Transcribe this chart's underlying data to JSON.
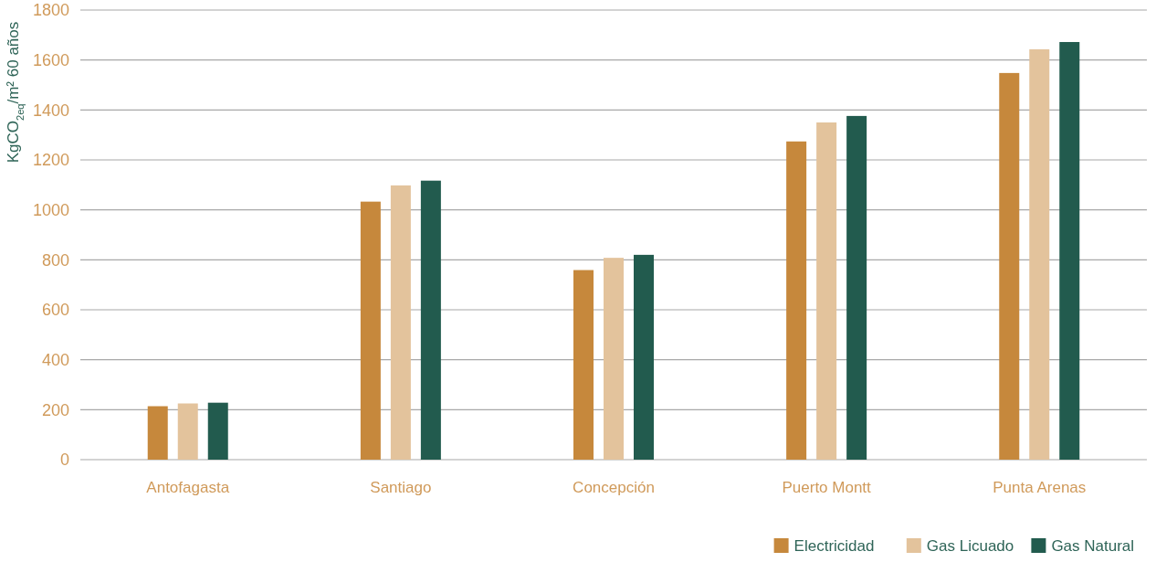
{
  "chart_data": {
    "type": "bar",
    "ylabel": "KgCO$_{2eq}$/m² 60 años",
    "categories": [
      "Antofagasta",
      "Santiago",
      "Concepción",
      "Puerto Montt",
      "Punta Arenas"
    ],
    "series": [
      {
        "name": "Electricidad",
        "color": "#c6883c",
        "values": [
          214,
          1033,
          759,
          1274,
          1548
        ]
      },
      {
        "name": "Gas Licuado",
        "color": "#e3c39c",
        "values": [
          225,
          1098,
          808,
          1350,
          1643
        ]
      },
      {
        "name": "Gas Natural",
        "color": "#225b4e",
        "values": [
          228,
          1117,
          820,
          1376,
          1672
        ]
      }
    ],
    "ylim": [
      0,
      1800
    ],
    "yticks": [
      0,
      200,
      400,
      600,
      800,
      1000,
      1200,
      1400,
      1600,
      1800
    ],
    "grid": "y",
    "legend": "bottom right"
  }
}
